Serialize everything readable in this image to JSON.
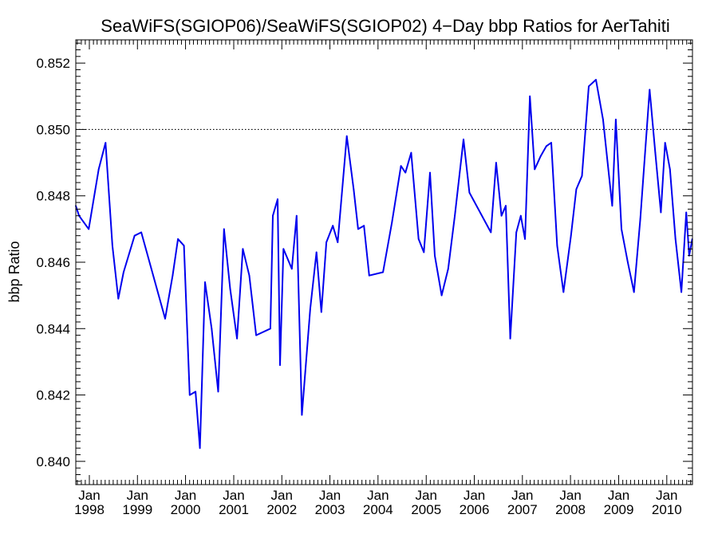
{
  "chart_data": {
    "type": "line",
    "title": "SeaWiFS(SGIOP06)/SeaWiFS(SGIOP02) 4−Day bbp Ratios for AerTahiti",
    "ylabel": "bbp Ratio",
    "xlabel": "",
    "ylim": [
      0.8393,
      0.8527
    ],
    "xlim": [
      "1997-09-20",
      "2010-07-15"
    ],
    "yticks": [
      "0.840",
      "0.842",
      "0.844",
      "0.846",
      "0.848",
      "0.850",
      "0.852"
    ],
    "xticks": [
      {
        "date": "1998-01-01",
        "month": "Jan",
        "year": "1998"
      },
      {
        "date": "1999-01-01",
        "month": "Jan",
        "year": "1999"
      },
      {
        "date": "2000-01-01",
        "month": "Jan",
        "year": "2000"
      },
      {
        "date": "2001-01-01",
        "month": "Jan",
        "year": "2001"
      },
      {
        "date": "2002-01-01",
        "month": "Jan",
        "year": "2002"
      },
      {
        "date": "2003-01-01",
        "month": "Jan",
        "year": "2003"
      },
      {
        "date": "2004-01-01",
        "month": "Jan",
        "year": "2004"
      },
      {
        "date": "2005-01-01",
        "month": "Jan",
        "year": "2005"
      },
      {
        "date": "2006-01-01",
        "month": "Jan",
        "year": "2006"
      },
      {
        "date": "2007-01-01",
        "month": "Jan",
        "year": "2007"
      },
      {
        "date": "2008-01-01",
        "month": "Jan",
        "year": "2008"
      },
      {
        "date": "2009-01-01",
        "month": "Jan",
        "year": "2009"
      },
      {
        "date": "2010-01-01",
        "month": "Jan",
        "year": "2010"
      }
    ],
    "reference_line": {
      "y": 0.85,
      "style": "dotted"
    },
    "series": [
      {
        "color": "#0000ee",
        "points": [
          [
            "1997-09-20",
            0.8477
          ],
          [
            "1997-10-15",
            0.8474
          ],
          [
            "1997-12-27",
            0.847
          ],
          [
            "1998-03-13",
            0.8488
          ],
          [
            "1998-05-04",
            0.8496
          ],
          [
            "1998-06-25",
            0.8465
          ],
          [
            "1998-08-09",
            0.8449
          ],
          [
            "1998-09-18",
            0.8457
          ],
          [
            "1998-12-10",
            0.8468
          ],
          [
            "1999-01-30",
            0.8469
          ],
          [
            "1999-07-30",
            0.8443
          ],
          [
            "1999-09-25",
            0.8456
          ],
          [
            "1999-11-05",
            0.8467
          ],
          [
            "1999-12-20",
            0.8465
          ],
          [
            "2000-02-02",
            0.842
          ],
          [
            "2000-03-17",
            0.8421
          ],
          [
            "2000-04-19",
            0.8404
          ],
          [
            "2000-05-28",
            0.8454
          ],
          [
            "2000-07-17",
            0.844
          ],
          [
            "2000-09-05",
            0.8421
          ],
          [
            "2000-10-19",
            0.847
          ],
          [
            "2000-12-05",
            0.8452
          ],
          [
            "2001-01-26",
            0.8437
          ],
          [
            "2001-03-11",
            0.8464
          ],
          [
            "2001-04-29",
            0.8456
          ],
          [
            "2001-06-20",
            0.8438
          ],
          [
            "2001-10-06",
            0.844
          ],
          [
            "2001-10-25",
            0.8474
          ],
          [
            "2001-11-30",
            0.8479
          ],
          [
            "2001-12-18",
            0.8429
          ],
          [
            "2002-01-13",
            0.8464
          ],
          [
            "2002-03-18",
            0.8458
          ],
          [
            "2002-04-23",
            0.8474
          ],
          [
            "2002-06-02",
            0.8414
          ],
          [
            "2002-08-05",
            0.8446
          ],
          [
            "2002-09-21",
            0.8463
          ],
          [
            "2002-10-28",
            0.8445
          ],
          [
            "2002-12-05",
            0.8466
          ],
          [
            "2003-01-23",
            0.8471
          ],
          [
            "2003-03-01",
            0.8466
          ],
          [
            "2003-05-09",
            0.8498
          ],
          [
            "2003-06-30",
            0.8482
          ],
          [
            "2003-08-03",
            0.847
          ],
          [
            "2003-09-16",
            0.8471
          ],
          [
            "2003-10-26",
            0.8456
          ],
          [
            "2004-02-08",
            0.8457
          ],
          [
            "2004-04-16",
            0.8472
          ],
          [
            "2004-06-23",
            0.8489
          ],
          [
            "2004-07-27",
            0.8487
          ],
          [
            "2004-09-09",
            0.8493
          ],
          [
            "2004-11-04",
            0.8467
          ],
          [
            "2004-12-14",
            0.8463
          ],
          [
            "2005-01-30",
            0.8487
          ],
          [
            "2005-03-07",
            0.8462
          ],
          [
            "2005-04-28",
            0.845
          ],
          [
            "2005-06-17",
            0.8458
          ],
          [
            "2005-08-06",
            0.8474
          ],
          [
            "2005-10-11",
            0.8497
          ],
          [
            "2005-11-25",
            0.8481
          ],
          [
            "2006-05-07",
            0.8469
          ],
          [
            "2006-06-16",
            0.849
          ],
          [
            "2006-07-26",
            0.8474
          ],
          [
            "2006-08-28",
            0.8477
          ],
          [
            "2006-10-01",
            0.8437
          ],
          [
            "2006-11-16",
            0.8469
          ],
          [
            "2006-12-20",
            0.8474
          ],
          [
            "2007-01-21",
            0.8467
          ],
          [
            "2007-02-27",
            0.851
          ],
          [
            "2007-04-04",
            0.8488
          ],
          [
            "2007-05-20",
            0.8492
          ],
          [
            "2007-07-02",
            0.8495
          ],
          [
            "2007-08-08",
            0.8496
          ],
          [
            "2007-09-22",
            0.8465
          ],
          [
            "2007-11-09",
            0.8451
          ],
          [
            "2008-01-05",
            0.8468
          ],
          [
            "2008-02-14",
            0.8482
          ],
          [
            "2008-03-28",
            0.8486
          ],
          [
            "2008-05-19",
            0.8513
          ],
          [
            "2008-07-12",
            0.8515
          ],
          [
            "2008-09-04",
            0.8503
          ],
          [
            "2008-11-13",
            0.8477
          ],
          [
            "2008-12-10",
            0.8503
          ],
          [
            "2009-01-22",
            0.847
          ],
          [
            "2009-03-11",
            0.846
          ],
          [
            "2009-04-27",
            0.8451
          ],
          [
            "2009-06-14",
            0.8473
          ],
          [
            "2009-08-24",
            0.8512
          ],
          [
            "2009-10-06",
            0.8493
          ],
          [
            "2009-11-17",
            0.8475
          ],
          [
            "2009-12-19",
            0.8496
          ],
          [
            "2010-01-25",
            0.8488
          ],
          [
            "2010-03-08",
            0.8467
          ],
          [
            "2010-04-22",
            0.8451
          ],
          [
            "2010-05-29",
            0.8475
          ],
          [
            "2010-06-20",
            0.8462
          ],
          [
            "2010-07-13",
            0.8467
          ]
        ]
      }
    ]
  }
}
